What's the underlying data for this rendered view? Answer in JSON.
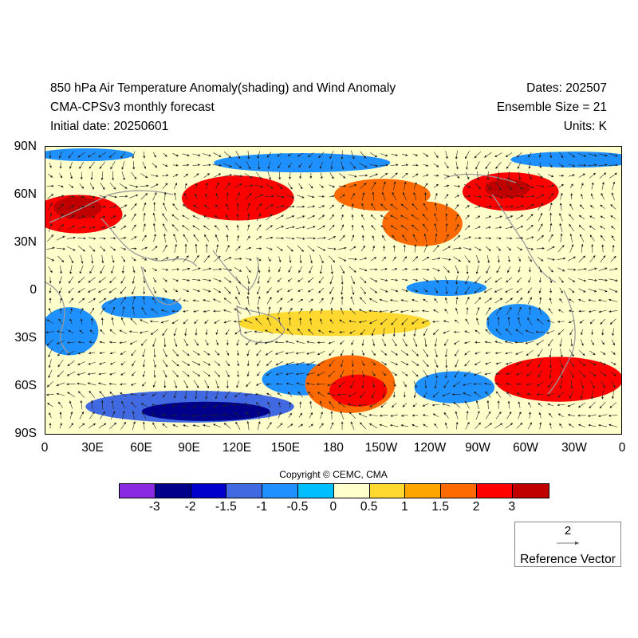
{
  "header": {
    "title": "850 hPa Air Temperature Anomaly(shading) and Wind Anomaly",
    "model": "CMA-CPSv3 monthly forecast",
    "initial_date": "Initial date: 20250601",
    "dates": "Dates: 202507",
    "ensemble": "Ensemble Size = 21",
    "units": "Units: K"
  },
  "axes": {
    "y_labels": [
      "90N",
      "60N",
      "30N",
      "0",
      "30S",
      "60S",
      "90S"
    ],
    "x_labels": [
      "0",
      "30E",
      "60E",
      "90E",
      "120E",
      "150E",
      "180",
      "150W",
      "120W",
      "90W",
      "60W",
      "30W",
      "0"
    ]
  },
  "copyright": "Copyright © CEMC, CMA",
  "colorbar": {
    "colors": [
      "#8a2be2",
      "#00008b",
      "#0000cd",
      "#4169e1",
      "#1e90ff",
      "#00bfff",
      "#ffffcc",
      "#ffd92f",
      "#ffa500",
      "#ff6a00",
      "#ff0000",
      "#c00000"
    ],
    "labels": [
      "-3",
      "-2",
      "-1.5",
      "-1",
      "-0.5",
      "0",
      "0.5",
      "1",
      "1.5",
      "2",
      "3"
    ]
  },
  "reference_vector": {
    "magnitude": "2",
    "label": "Reference Vector"
  },
  "anomaly_regions": [
    {
      "lon": 20,
      "lat": 48,
      "rx": 28,
      "ry": 12,
      "value": 2.5
    },
    {
      "lon": 20,
      "lat": 52,
      "rx": 15,
      "ry": 7,
      "value": 3.2
    },
    {
      "lon": 120,
      "lat": 58,
      "rx": 35,
      "ry": 14,
      "value": 2.0
    },
    {
      "lon": 130,
      "lat": 58,
      "rx": 18,
      "ry": 8,
      "value": 2.8
    },
    {
      "lon": 210,
      "lat": 60,
      "rx": 30,
      "ry": 10,
      "value": 1.7
    },
    {
      "lon": 290,
      "lat": 62,
      "rx": 30,
      "ry": 12,
      "value": 2.2
    },
    {
      "lon": 288,
      "lat": 64,
      "rx": 14,
      "ry": 6,
      "value": 3.1
    },
    {
      "lon": 235,
      "lat": 42,
      "rx": 25,
      "ry": 14,
      "value": 1.6
    },
    {
      "lon": 160,
      "lat": 80,
      "rx": 55,
      "ry": 6,
      "value": -0.8
    },
    {
      "lon": 330,
      "lat": 82,
      "rx": 40,
      "ry": 5,
      "value": -0.8
    },
    {
      "lon": 25,
      "lat": 85,
      "rx": 30,
      "ry": 4,
      "value": -0.7
    },
    {
      "lon": 60,
      "lat": -10,
      "rx": 25,
      "ry": 7,
      "value": -0.7
    },
    {
      "lon": 15,
      "lat": -25,
      "rx": 18,
      "ry": 15,
      "value": -0.8
    },
    {
      "lon": 295,
      "lat": -20,
      "rx": 20,
      "ry": 12,
      "value": -0.8
    },
    {
      "lon": 250,
      "lat": 2,
      "rx": 25,
      "ry": 5,
      "value": -0.7
    },
    {
      "lon": 190,
      "lat": -58,
      "rx": 28,
      "ry": 18,
      "value": 1.7
    },
    {
      "lon": 195,
      "lat": -62,
      "rx": 18,
      "ry": 10,
      "value": 2.1
    },
    {
      "lon": 320,
      "lat": -55,
      "rx": 40,
      "ry": 14,
      "value": 2.0
    },
    {
      "lon": 160,
      "lat": -55,
      "rx": 25,
      "ry": 10,
      "value": -0.8
    },
    {
      "lon": 255,
      "lat": -60,
      "rx": 25,
      "ry": 10,
      "value": -0.8
    },
    {
      "lon": 90,
      "lat": -72,
      "rx": 65,
      "ry": 10,
      "value": -1.3
    },
    {
      "lon": 100,
      "lat": -75,
      "rx": 40,
      "ry": 6,
      "value": -2.2
    },
    {
      "lon": 110,
      "lat": -76,
      "rx": 20,
      "ry": 4,
      "value": -3.0
    },
    {
      "lon": 180,
      "lat": -20,
      "rx": 60,
      "ry": 8,
      "value": 0.7
    }
  ]
}
